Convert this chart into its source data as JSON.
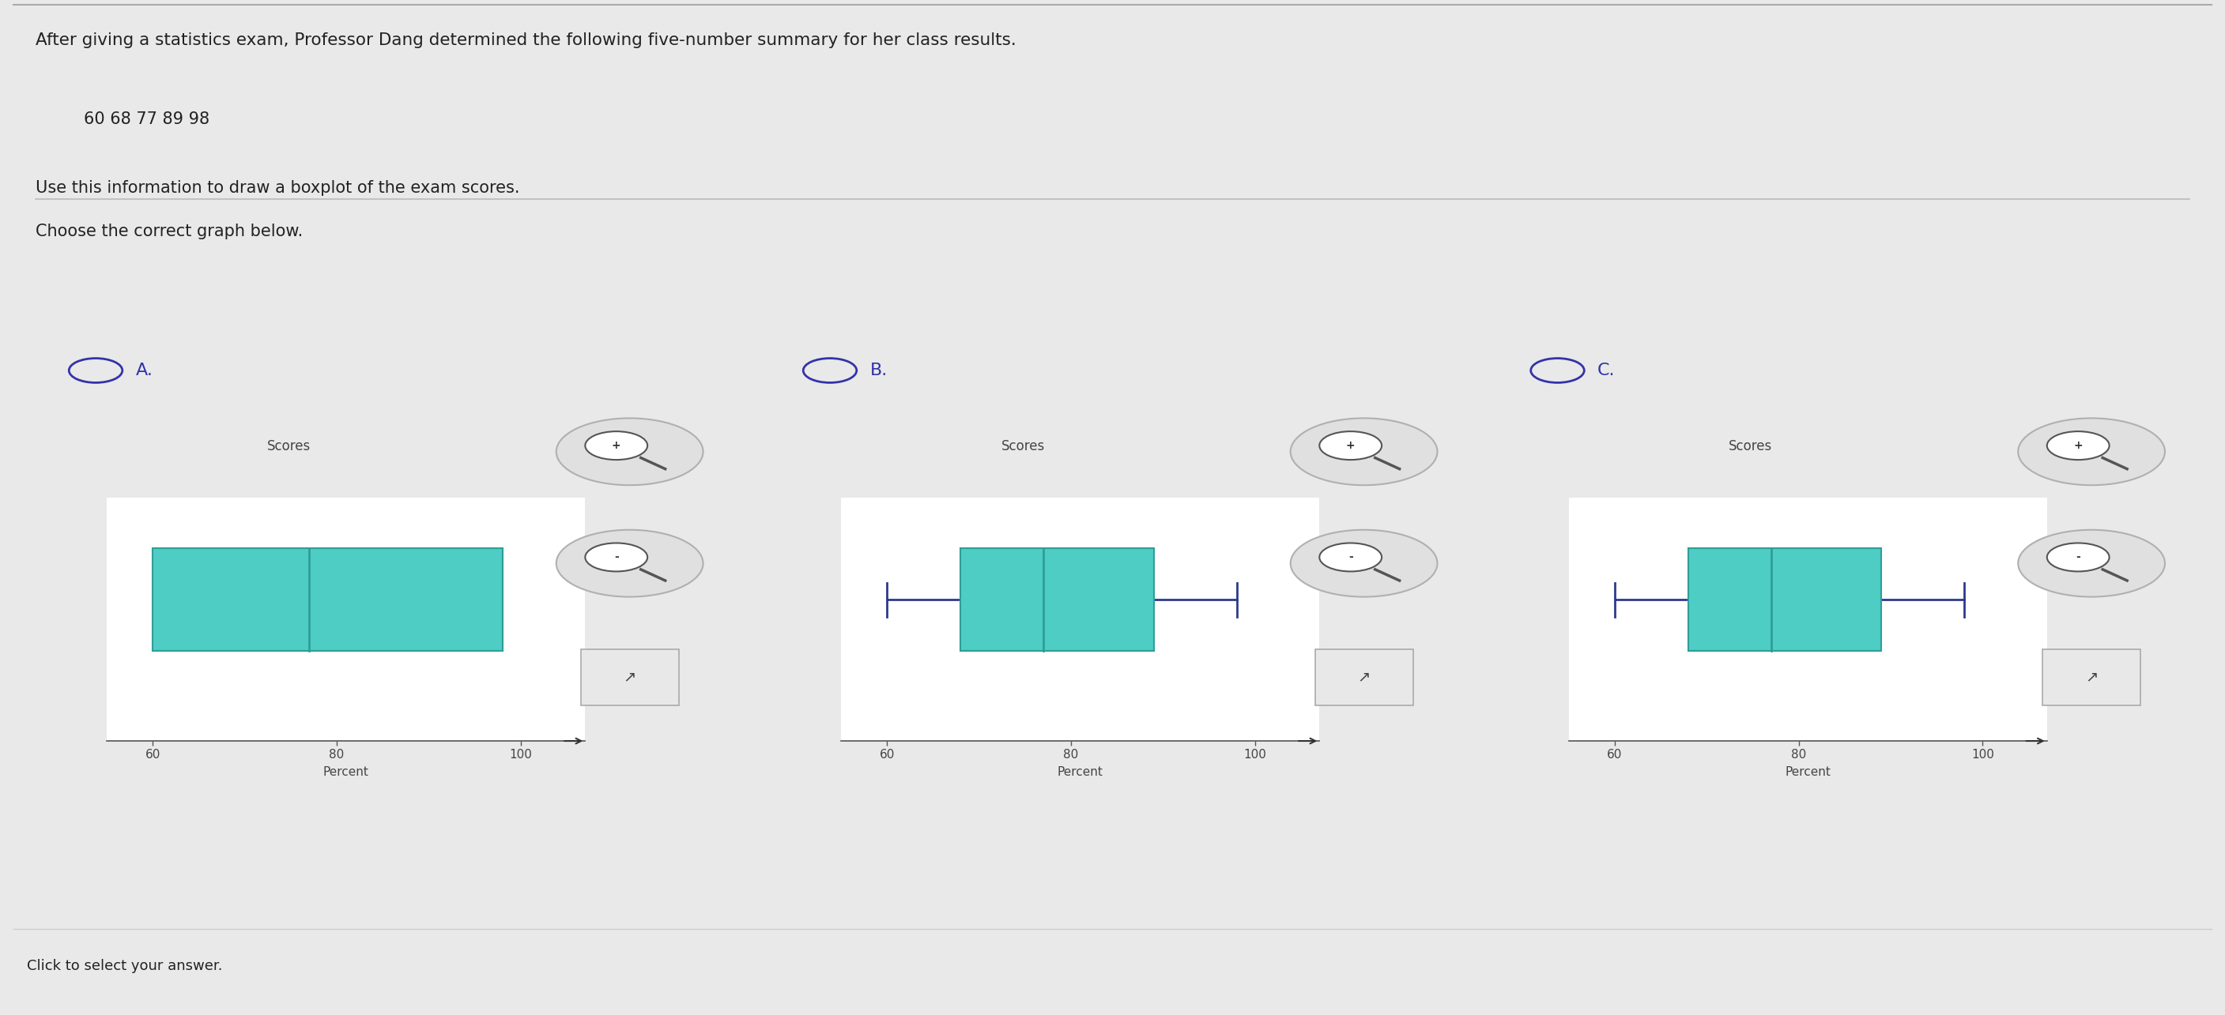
{
  "title_text": "After giving a statistics exam, Professor Dang determined the following five-number summary for her class results.",
  "five_number": "60 68 77 89 98",
  "instruction": "Use this information to draw a boxplot of the exam scores.",
  "choose_text": "Choose the correct graph below.",
  "bg_color": "#e9e9e9",
  "panel_bg": "#f2f2f2",
  "box_fill": "#4ecdc4",
  "box_edge": "#2e9e98",
  "whisker_color_A": "#2c3a8c",
  "whisker_color_B": "#2c3a8c",
  "whisker_color_C": "#2c3a8c",
  "label_color": "#3333aa",
  "text_color": "#222222",
  "scores_label": "Scores",
  "percent_label": "Percent",
  "xticks": [
    60,
    80,
    100
  ],
  "xlim_min": 55,
  "xlim_max": 107,
  "plot_A": {
    "wl": 60,
    "q1": 60,
    "med": 77,
    "q3": 98,
    "wr": 98,
    "no_whisker_caps": false
  },
  "plot_B": {
    "wl": 60,
    "q1": 68,
    "med": 77,
    "q3": 89,
    "wr": 98,
    "no_whisker_caps": false
  },
  "plot_C": {
    "wl": 60,
    "q1": 68,
    "med": 77,
    "q3": 89,
    "wr": 98,
    "no_whisker_caps": false
  },
  "option_labels": [
    "A.",
    "B.",
    "C."
  ]
}
